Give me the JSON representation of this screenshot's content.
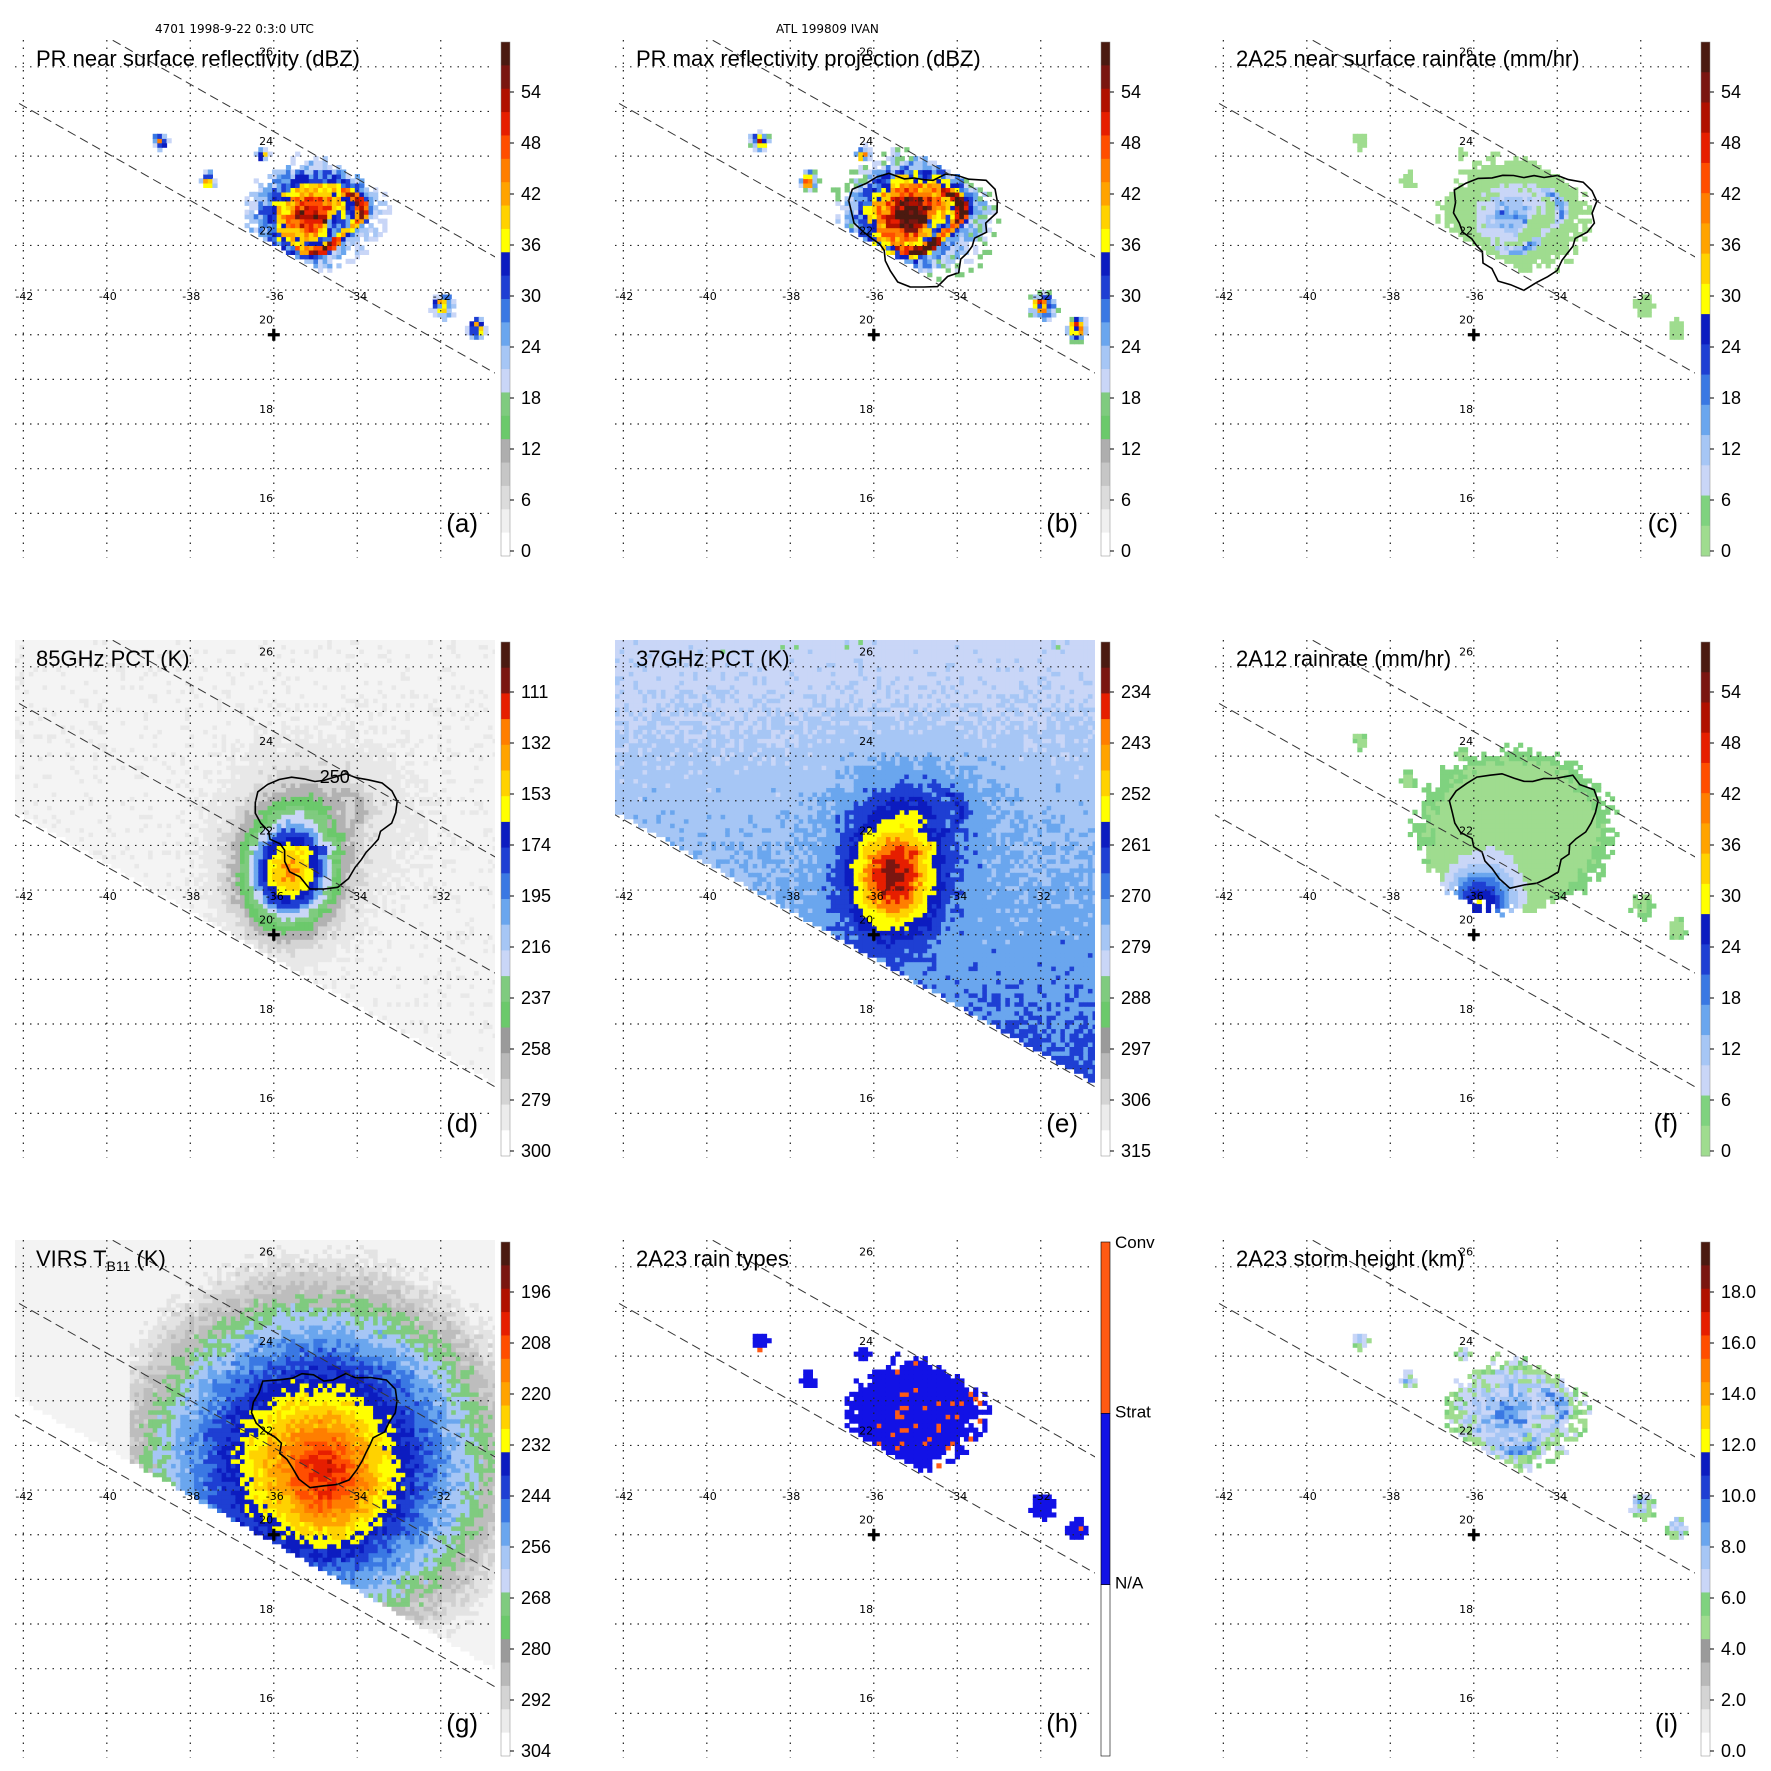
{
  "header": {
    "left": "4701 1998-9-22 0:3:0 UTC",
    "center": "ATL 199809 IVAN"
  },
  "chart_data": [
    {
      "type": "heatmap",
      "panel": "a",
      "title": "PR near surface reflectivity (dBZ)",
      "letter": "(a)",
      "lon_ticks": [
        "-42",
        "-40",
        "-38",
        "-36",
        "-34",
        "-32"
      ],
      "lat_ticks": [
        "26",
        "24",
        "22",
        "20",
        "18",
        "16"
      ],
      "colorbar": {
        "labels": [
          "54",
          "48",
          "42",
          "36",
          "30",
          "24",
          "18",
          "12",
          "6",
          "0"
        ],
        "scheme": "dbz",
        "range": [
          0,
          60
        ]
      },
      "field": "pr",
      "swath": "pr",
      "contour": false
    },
    {
      "type": "heatmap",
      "panel": "b",
      "title": "PR max reflectivity projection (dBZ)",
      "letter": "(b)",
      "lon_ticks": [
        "-42",
        "-40",
        "-38",
        "-36",
        "-34",
        "-32"
      ],
      "lat_ticks": [
        "26",
        "24",
        "22",
        "20",
        "18",
        "16"
      ],
      "colorbar": {
        "labels": [
          "54",
          "48",
          "42",
          "36",
          "30",
          "24",
          "18",
          "12",
          "6",
          "0"
        ],
        "scheme": "dbz",
        "range": [
          0,
          60
        ]
      },
      "field": "prmax",
      "swath": "pr",
      "contour": true
    },
    {
      "type": "heatmap",
      "panel": "c",
      "title": "2A25 near surface rainrate (mm/hr)",
      "letter": "(c)",
      "lon_ticks": [
        "-42",
        "-40",
        "-38",
        "-36",
        "-34",
        "-32"
      ],
      "lat_ticks": [
        "26",
        "24",
        "22",
        "20",
        "18",
        "16"
      ],
      "colorbar": {
        "labels": [
          "54",
          "48",
          "42",
          "36",
          "30",
          "24",
          "18",
          "12",
          "6",
          "0"
        ],
        "scheme": "rain",
        "range": [
          0,
          60
        ]
      },
      "field": "rain25",
      "swath": "pr",
      "contour": true
    },
    {
      "type": "heatmap",
      "panel": "d",
      "title": "85GHz PCT (K)",
      "letter": "(d)",
      "lon_ticks": [
        "-42",
        "-40",
        "-38",
        "-36",
        "-34",
        "-32"
      ],
      "lat_ticks": [
        "26",
        "24",
        "22",
        "20",
        "18",
        "16"
      ],
      "colorbar": {
        "labels": [
          "111",
          "132",
          "153",
          "174",
          "195",
          "216",
          "237",
          "258",
          "279",
          "300"
        ],
        "scheme": "pct85",
        "range": [
          90,
          300
        ]
      },
      "field": "pct85",
      "swath": "tmi",
      "contour": true,
      "contour_label": "250"
    },
    {
      "type": "heatmap",
      "panel": "e",
      "title": "37GHz PCT (K)",
      "letter": "(e)",
      "lon_ticks": [
        "-42",
        "-40",
        "-38",
        "-36",
        "-34",
        "-32"
      ],
      "lat_ticks": [
        "26",
        "24",
        "22",
        "20",
        "18",
        "16"
      ],
      "colorbar": {
        "labels": [
          "234",
          "243",
          "252",
          "261",
          "270",
          "279",
          "288",
          "297",
          "306",
          "315"
        ],
        "scheme": "pct37",
        "range": [
          225,
          315
        ]
      },
      "field": "pct37",
      "swath": "tmi",
      "contour": false
    },
    {
      "type": "heatmap",
      "panel": "f",
      "title": "2A12 rainrate (mm/hr)",
      "letter": "(f)",
      "lon_ticks": [
        "-42",
        "-40",
        "-38",
        "-36",
        "-34",
        "-32"
      ],
      "lat_ticks": [
        "26",
        "24",
        "22",
        "20",
        "18",
        "16"
      ],
      "colorbar": {
        "labels": [
          "54",
          "48",
          "42",
          "36",
          "30",
          "24",
          "18",
          "12",
          "6",
          "0"
        ],
        "scheme": "rain",
        "range": [
          0,
          60
        ]
      },
      "field": "rain12",
      "swath": "tmi",
      "contour": true
    },
    {
      "type": "heatmap",
      "panel": "g",
      "title_main": "VIRS T",
      "title_sub": "B11",
      "title_tail": " (K)",
      "letter": "(g)",
      "lon_ticks": [
        "-42",
        "-40",
        "-38",
        "-36",
        "-34",
        "-32"
      ],
      "lat_ticks": [
        "26",
        "24",
        "22",
        "20",
        "18",
        "16"
      ],
      "colorbar": {
        "labels": [
          "196",
          "208",
          "220",
          "232",
          "244",
          "256",
          "268",
          "280",
          "292",
          "304"
        ],
        "scheme": "virs",
        "range": [
          184,
          304
        ]
      },
      "field": "virs",
      "swath": "virs",
      "contour": true
    },
    {
      "type": "heatmap",
      "panel": "h",
      "title": "2A23 rain types",
      "letter": "(h)",
      "lon_ticks": [
        "-42",
        "-40",
        "-38",
        "-36",
        "-34",
        "-32"
      ],
      "lat_ticks": [
        "26",
        "24",
        "22",
        "20",
        "18",
        "16"
      ],
      "colorbar": {
        "labels": [
          "Conv",
          "Strat",
          "N/A"
        ],
        "scheme": "types"
      },
      "field": "types",
      "swath": "pr",
      "contour": false
    },
    {
      "type": "heatmap",
      "panel": "i",
      "title": "2A23 storm height (km)",
      "letter": "(i)",
      "lon_ticks": [
        "-42",
        "-40",
        "-38",
        "-36",
        "-34",
        "-32"
      ],
      "lat_ticks": [
        "26",
        "24",
        "22",
        "20",
        "18",
        "16"
      ],
      "colorbar": {
        "labels": [
          "18.0",
          "16.0",
          "14.0",
          "12.0",
          "10.0",
          "8.0",
          "6.0",
          "4.0",
          "2.0",
          "0.0"
        ],
        "scheme": "height",
        "range": [
          0,
          20
        ]
      },
      "field": "height",
      "swath": "pr",
      "contour": false
    }
  ],
  "storm_center": {
    "lon": -36.0,
    "lat": 20.0,
    "marker": "plus"
  },
  "map_extent": {
    "lon": [
      -42.2,
      -30.7
    ],
    "lat": [
      15.0,
      26.6
    ]
  },
  "colors": {
    "dbz": [
      "#ffffff",
      "#f0f0f0",
      "#dcdcdc",
      "#c6c6c6",
      "#aeaeae",
      "#6bc96b",
      "#7fcb7f",
      "#c9d6f7",
      "#a6c6f5",
      "#6aa6ee",
      "#3a78e3",
      "#1e3fd3",
      "#0c1cc0",
      "#ffff00",
      "#ffd200",
      "#ffa300",
      "#ff7e00",
      "#ff4e00",
      "#e61e00",
      "#b01000",
      "#7a1610",
      "#4a1a10"
    ],
    "rain": [
      "#7fd27f",
      "#9fdc8f",
      "#c9d6f7",
      "#a6c6f5",
      "#6aa6ee",
      "#3a78e3",
      "#1e3fd3",
      "#0c1cc0",
      "#ffff00",
      "#ffd200",
      "#ffa300",
      "#ff7e00",
      "#ff4e00",
      "#e61e00",
      "#b01000",
      "#7a1610",
      "#4a1a10"
    ],
    "height": [
      "#ffffff",
      "#ececec",
      "#d4d4d4",
      "#b9b9b9",
      "#9a9a9a",
      "#7fd27f",
      "#9fdc8f",
      "#c9d6f7",
      "#a6c6f5",
      "#6aa6ee",
      "#3a78e3",
      "#1e3fd3",
      "#0c1cc0",
      "#ffff00",
      "#ffd200",
      "#ffa300",
      "#ff7e00",
      "#ff4e00",
      "#e61e00",
      "#b01000",
      "#7a1610",
      "#4a1a10"
    ],
    "gray": [
      "#ffffff",
      "#efefef",
      "#dedede",
      "#c9c9c9",
      "#b2b2b2"
    ],
    "conv": "#ff5a14",
    "strat": "#1212e6"
  }
}
